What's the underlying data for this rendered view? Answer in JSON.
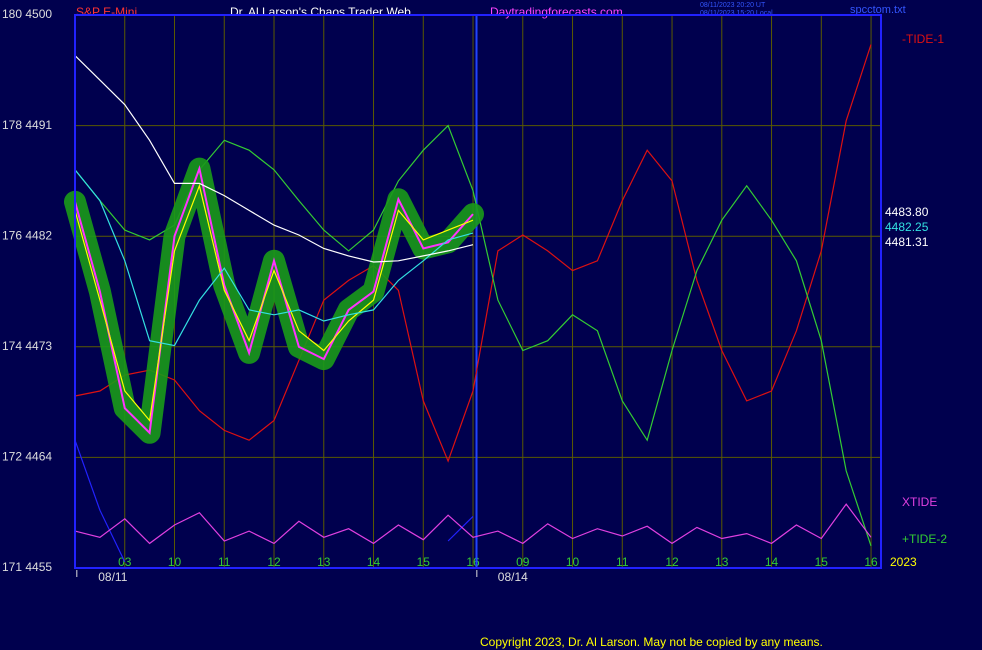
{
  "chart_data": {
    "type": "line",
    "title": "Dr. Al Larson's Chaos Trader Web",
    "instrument": "S&P E-Mini",
    "site": "Daytradingforecasts.com",
    "timestamps": [
      "08/11/2023 20:20 UT",
      "08/11/2023 15:20 Local"
    ],
    "file": "spcctom.txt",
    "year": "2023",
    "copyright": "Copyright 2023, Dr. Al Larson. May not be copied by any means.",
    "grid": true,
    "xlim": [
      -1,
      15.2
    ],
    "ylim": [
      4455,
      4500
    ],
    "yticks": [
      {
        "value": 4455,
        "label": "171 4455"
      },
      {
        "value": 4464,
        "label": "172 4464"
      },
      {
        "value": 4473,
        "label": "174 4473"
      },
      {
        "value": 4482,
        "label": "176 4482"
      },
      {
        "value": 4491,
        "label": "178 4491"
      },
      {
        "value": 4500,
        "label": "180 4500"
      }
    ],
    "xticks": [
      {
        "value": 0,
        "label": "03"
      },
      {
        "value": 1,
        "label": "10"
      },
      {
        "value": 2,
        "label": "11"
      },
      {
        "value": 3,
        "label": "12"
      },
      {
        "value": 4,
        "label": "13"
      },
      {
        "value": 5,
        "label": "14"
      },
      {
        "value": 6,
        "label": "15"
      },
      {
        "value": 7,
        "label": "16"
      },
      {
        "value": 8,
        "label": "09"
      },
      {
        "value": 9,
        "label": "10"
      },
      {
        "value": 10,
        "label": "11"
      },
      {
        "value": 11,
        "label": "12"
      },
      {
        "value": 12,
        "label": "13"
      },
      {
        "value": 13,
        "label": "14"
      },
      {
        "value": 14,
        "label": "15"
      },
      {
        "value": 15,
        "label": "16"
      }
    ],
    "date_labels": [
      {
        "value": -0.24,
        "label": "08/11"
      },
      {
        "value": 7.8,
        "label": "08/14"
      }
    ],
    "now_x": 7.07,
    "x": [
      -1,
      -0.5,
      0,
      0.5,
      1,
      1.5,
      2,
      2.5,
      3,
      3.5,
      4,
      4.5,
      5,
      5.5,
      6,
      6.5,
      7,
      7.5,
      8,
      8.5,
      9,
      9.5,
      10,
      10.5,
      11,
      11.5,
      12,
      12.5,
      13,
      13.5,
      14,
      14.5,
      15
    ],
    "series": [
      {
        "color": "#2222ff",
        "values": [
          4465.4,
          4459.7,
          4455.5,
          null,
          null,
          null,
          null,
          null,
          null,
          null,
          null,
          null,
          null,
          null,
          null,
          4457.2,
          4459.2,
          null,
          null,
          null,
          null,
          null,
          null,
          null,
          null,
          null,
          null,
          null,
          null,
          null,
          null,
          null,
          null
        ]
      },
      {
        "name": "-TIDE-1",
        "color": "#dd1111",
        "values": [
          4469.0,
          4469.4,
          4470.7,
          4471.1,
          4470.3,
          4467.8,
          4466.2,
          4465.4,
          4467.0,
          4471.9,
          4476.8,
          4478.4,
          4479.6,
          4477.6,
          4468.6,
          4463.7,
          4469.4,
          4480.8,
          4482.1,
          4480.8,
          4479.2,
          4480.0,
          4484.9,
          4489.0,
          4486.5,
          4478.4,
          4472.7,
          4468.6,
          4469.4,
          4474.3,
          4480.8,
          4491.4,
          4497.6
        ]
      },
      {
        "name": "+TIDE-2",
        "color": "#33cc33",
        "values": [
          4487.4,
          4484.9,
          4482.5,
          4481.7,
          4482.9,
          4487.4,
          4489.8,
          4489.0,
          4487.4,
          4484.9,
          4482.5,
          4480.8,
          4482.5,
          4486.5,
          4489.0,
          4491.0,
          4485.7,
          4476.8,
          4472.7,
          4473.5,
          4475.6,
          4474.3,
          4468.6,
          4465.4,
          4472.7,
          4479.2,
          4483.3,
          4486.1,
          4483.3,
          4480.0,
          4473.5,
          4462.9,
          4456.8
        ]
      },
      {
        "name": "XTIDE",
        "color": "#e040e0",
        "values": [
          4458.0,
          4457.5,
          4459.0,
          4457.0,
          4458.5,
          4459.5,
          4457.2,
          4458.0,
          4457.0,
          4458.8,
          4457.5,
          4458.2,
          4457.0,
          4458.5,
          4457.3,
          4459.3,
          4457.5,
          4458.0,
          4457.0,
          4458.6,
          4457.4,
          4458.2,
          4457.6,
          4458.4,
          4457.0,
          4458.3,
          4457.4,
          4457.8,
          4457.0,
          4458.5,
          4457.4,
          4460.2,
          4457.5
        ]
      },
      {
        "color": "#ff33ff",
        "halo": "#1a9a1a",
        "end_label": "4483.80",
        "values": [
          4484.8,
          4477.5,
          4468.0,
          4466.0,
          4482.0,
          4487.5,
          4478.0,
          4472.5,
          4480.0,
          4473.0,
          4472.0,
          4476.0,
          4477.5,
          4485.0,
          4481.0,
          4481.5,
          4483.8,
          null,
          null,
          null,
          null,
          null,
          null,
          null,
          null,
          null,
          null,
          null,
          null,
          null,
          null,
          null,
          null
        ]
      },
      {
        "color": "#ffff00",
        "values": [
          4484.1,
          4476.8,
          4469.4,
          4467.0,
          4480.8,
          4486.1,
          4477.6,
          4473.5,
          4479.2,
          4474.3,
          4472.7,
          4475.1,
          4476.8,
          4484.1,
          4481.7,
          4482.5,
          4483.3,
          null,
          null,
          null,
          null,
          null,
          null,
          null,
          null,
          null,
          null,
          null,
          null,
          null,
          null,
          null,
          null
        ]
      },
      {
        "color": "#33e0e0",
        "end_label": "4482.25",
        "values": [
          4487.4,
          4484.9,
          4480.0,
          4473.5,
          4473.1,
          4476.8,
          4479.4,
          4476.0,
          4475.6,
          4476.0,
          4475.1,
          4475.6,
          4476.0,
          4478.4,
          4480.0,
          4481.7,
          4482.25,
          null,
          null,
          null,
          null,
          null,
          null,
          null,
          null,
          null,
          null,
          null,
          null,
          null,
          null,
          null,
          null
        ]
      },
      {
        "color": "#ffffff",
        "end_label": "4481.31",
        "values": [
          4496.7,
          4494.7,
          4492.7,
          4489.8,
          4486.3,
          4486.3,
          4485.3,
          4484.1,
          4482.9,
          4482.1,
          4481.0,
          4480.4,
          4479.9,
          4480.0,
          4480.4,
          4480.8,
          4481.31,
          null,
          null,
          null,
          null,
          null,
          null,
          null,
          null,
          null,
          null,
          null,
          null,
          null,
          null,
          null,
          null
        ]
      }
    ]
  }
}
